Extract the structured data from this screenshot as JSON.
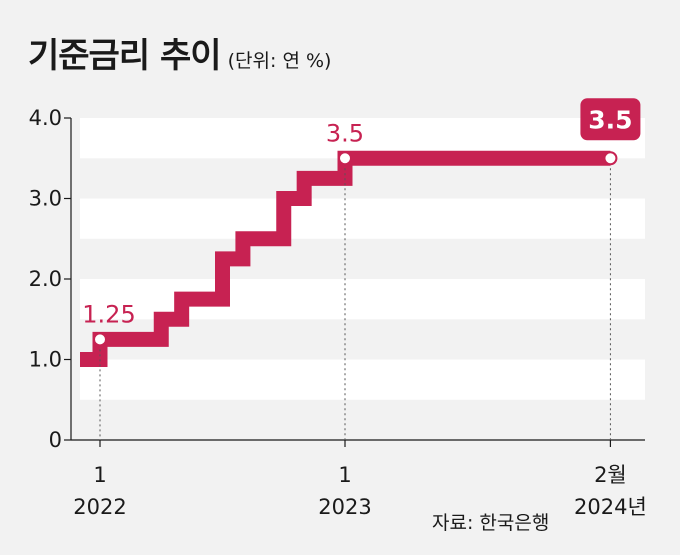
{
  "header": {
    "title": "기준금리 추이",
    "unit": "(단위: 연 %)"
  },
  "source": "자료: 한국은행",
  "colors": {
    "line": "#c72252",
    "band": "#ffffff",
    "background": "#f2f2f2"
  },
  "chart_data": {
    "type": "line",
    "step": true,
    "ylim": [
      0,
      4.0
    ],
    "yticks": [
      "0",
      "1.0",
      "2.0",
      "3.0",
      "4.0"
    ],
    "xticks": [
      {
        "line1": "1",
        "line2": "2022"
      },
      {
        "line1": "1",
        "line2": "2023"
      },
      {
        "line1": "2월",
        "line2": "2024년"
      }
    ],
    "series": [
      {
        "x": [
          "2021-12",
          "2022-01",
          "2022-04",
          "2022-05",
          "2022-07",
          "2022-08",
          "2022-10",
          "2022-11",
          "2023-01",
          "2024-02"
        ],
        "values": [
          1.0,
          1.25,
          1.5,
          1.75,
          2.25,
          2.5,
          3.0,
          3.25,
          3.5,
          3.5
        ]
      }
    ],
    "data_labels": [
      {
        "x": "2022-01",
        "y": 1.25,
        "label": "1.25"
      },
      {
        "x": "2023-01",
        "y": 3.5,
        "label": "3.5"
      },
      {
        "x": "2024-02",
        "y": 3.5,
        "label": "3.5",
        "boxed": true
      }
    ]
  }
}
